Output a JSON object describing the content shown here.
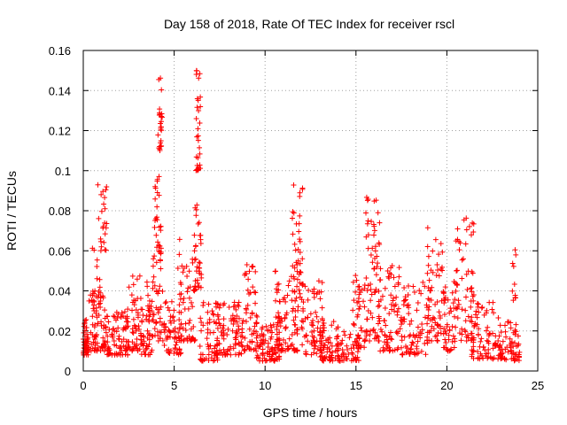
{
  "chart_data": {
    "type": "scatter",
    "title": "Day 158 of 2018, Rate Of TEC Index for receiver rscl",
    "xlabel": "GPS time / hours",
    "ylabel": "ROTI / TECUs",
    "xlim": [
      0,
      25
    ],
    "ylim": [
      0,
      0.16
    ],
    "xticks": [
      0,
      5,
      10,
      15,
      20,
      25
    ],
    "xtick_labels": [
      "0",
      "5",
      "10",
      "15",
      "20",
      "25"
    ],
    "yticks": [
      0,
      0.02,
      0.04,
      0.06,
      0.08,
      0.1,
      0.12,
      0.14,
      0.16
    ],
    "ytick_labels": [
      "0",
      "0.02",
      "0.04",
      "0.06",
      "0.08",
      "0.1",
      "0.12",
      "0.14",
      "0.16"
    ],
    "grid": true,
    "marker": "+",
    "series": [
      {
        "name": "ROTI",
        "color": "#ff0000",
        "clusters": [
          {
            "x": [
              0.0,
              0.3
            ],
            "y": [
              0.008,
              0.02
            ],
            "count": 40
          },
          {
            "x": [
              0.0,
              0.2
            ],
            "y": [
              0.02,
              0.028
            ],
            "count": 8
          },
          {
            "x": [
              0.3,
              1.2
            ],
            "y": [
              0.01,
              0.04
            ],
            "count": 60
          },
          {
            "x": [
              0.5,
              1.0
            ],
            "y": [
              0.03,
              0.065
            ],
            "count": 25
          },
          {
            "x": [
              0.8,
              1.3
            ],
            "y": [
              0.06,
              0.095
            ],
            "count": 20
          },
          {
            "x": [
              1.2,
              2.5
            ],
            "y": [
              0.008,
              0.03
            ],
            "count": 80
          },
          {
            "x": [
              2.3,
              3.2
            ],
            "y": [
              0.01,
              0.048
            ],
            "count": 60
          },
          {
            "x": [
              3.2,
              3.8
            ],
            "y": [
              0.008,
              0.035
            ],
            "count": 40
          },
          {
            "x": [
              3.5,
              3.8
            ],
            "y": [
              0.03,
              0.06
            ],
            "count": 12
          },
          {
            "x": [
              3.8,
              4.4
            ],
            "y": [
              0.015,
              0.06
            ],
            "count": 45
          },
          {
            "x": [
              3.9,
              4.3
            ],
            "y": [
              0.06,
              0.098
            ],
            "count": 25
          },
          {
            "x": [
              4.1,
              4.35
            ],
            "y": [
              0.11,
              0.149
            ],
            "count": 25
          },
          {
            "x": [
              4.4,
              5.4
            ],
            "y": [
              0.008,
              0.035
            ],
            "count": 60
          },
          {
            "x": [
              5.2,
              6.2
            ],
            "y": [
              0.015,
              0.066
            ],
            "count": 60
          },
          {
            "x": [
              6.1,
              6.5
            ],
            "y": [
              0.04,
              0.09
            ],
            "count": 35
          },
          {
            "x": [
              6.2,
              6.45
            ],
            "y": [
              0.1,
              0.151
            ],
            "count": 30
          },
          {
            "x": [
              6.4,
              7.4
            ],
            "y": [
              0.005,
              0.035
            ],
            "count": 60
          },
          {
            "x": [
              7.3,
              8.8
            ],
            "y": [
              0.008,
              0.035
            ],
            "count": 90
          },
          {
            "x": [
              8.8,
              9.6
            ],
            "y": [
              0.01,
              0.055
            ],
            "count": 50
          },
          {
            "x": [
              9.5,
              10.8
            ],
            "y": [
              0.005,
              0.025
            ],
            "count": 80
          },
          {
            "x": [
              10.5,
              11.8
            ],
            "y": [
              0.01,
              0.05
            ],
            "count": 90
          },
          {
            "x": [
              11.5,
              12.2
            ],
            "y": [
              0.03,
              0.094
            ],
            "count": 45
          },
          {
            "x": [
              12.0,
              13.2
            ],
            "y": [
              0.008,
              0.045
            ],
            "count": 70
          },
          {
            "x": [
              13.0,
              15.2
            ],
            "y": [
              0.005,
              0.025
            ],
            "count": 120
          },
          {
            "x": [
              14.8,
              15.6
            ],
            "y": [
              0.01,
              0.05
            ],
            "count": 40
          },
          {
            "x": [
              15.5,
              16.3
            ],
            "y": [
              0.015,
              0.09
            ],
            "count": 60
          },
          {
            "x": [
              16.2,
              17.5
            ],
            "y": [
              0.01,
              0.055
            ],
            "count": 80
          },
          {
            "x": [
              17.5,
              19.0
            ],
            "y": [
              0.008,
              0.045
            ],
            "count": 80
          },
          {
            "x": [
              18.9,
              19.8
            ],
            "y": [
              0.015,
              0.074
            ],
            "count": 60
          },
          {
            "x": [
              19.8,
              20.5
            ],
            "y": [
              0.01,
              0.045
            ],
            "count": 50
          },
          {
            "x": [
              20.5,
              21.5
            ],
            "y": [
              0.015,
              0.08
            ],
            "count": 60
          },
          {
            "x": [
              21.3,
              23.0
            ],
            "y": [
              0.006,
              0.035
            ],
            "count": 90
          },
          {
            "x": [
              22.9,
              24.0
            ],
            "y": [
              0.005,
              0.025
            ],
            "count": 60
          },
          {
            "x": [
              23.6,
              23.9
            ],
            "y": [
              0.035,
              0.065
            ],
            "count": 10
          }
        ]
      }
    ]
  }
}
